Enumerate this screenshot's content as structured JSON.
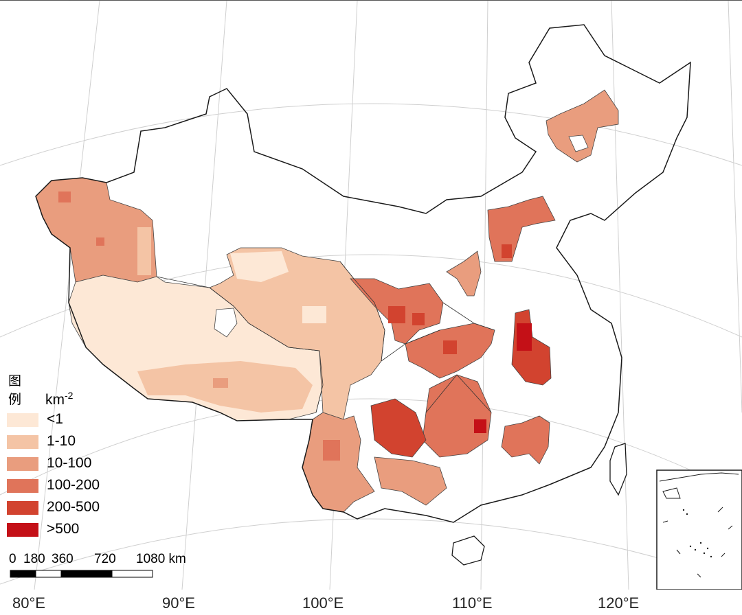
{
  "legend": {
    "title": "图例",
    "unit_base": "km",
    "unit_exp": "-2",
    "items": [
      {
        "label": "<1",
        "color": "#fde8d6"
      },
      {
        "label": "1-10",
        "color": "#f4c4a5"
      },
      {
        "label": "10-100",
        "color": "#e99d7e"
      },
      {
        "label": "100-200",
        "color": "#e0745a"
      },
      {
        "label": "200-500",
        "color": "#d2432f"
      },
      {
        "label": ">500",
        "color": "#c41017"
      }
    ]
  },
  "scale_bar": {
    "labels": [
      "0",
      "180",
      "360",
      "720",
      "1080 km"
    ]
  },
  "longitude_labels": [
    "80°E",
    "90°E",
    "100°E",
    "110°E",
    "120°E"
  ],
  "colors": {
    "graticule": "#cfcfcf",
    "border": "#1a1a1a"
  }
}
